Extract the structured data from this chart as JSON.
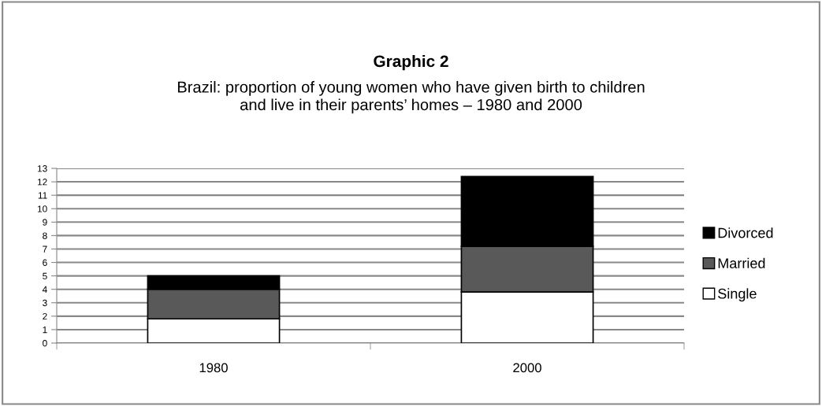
{
  "chart_data": {
    "type": "bar",
    "title": "Graphic 2",
    "subtitle": "Brazil: proportion of young women who have given birth to children\nand live in their parents’ homes – 1980 and 2000",
    "categories": [
      "1980",
      "2000"
    ],
    "stacked": true,
    "series": [
      {
        "name": "Single",
        "color": "#ffffff",
        "values": [
          1.8,
          3.8
        ]
      },
      {
        "name": "Married",
        "color": "#595959",
        "values": [
          2.2,
          3.4
        ]
      },
      {
        "name": "Divorced",
        "color": "#000000",
        "values": [
          1.0,
          5.2
        ]
      }
    ],
    "ylim": [
      0,
      13
    ],
    "yticks": [
      0,
      1,
      2,
      3,
      4,
      5,
      6,
      7,
      8,
      9,
      10,
      11,
      12,
      13
    ],
    "grid": "y",
    "legend": "right"
  }
}
